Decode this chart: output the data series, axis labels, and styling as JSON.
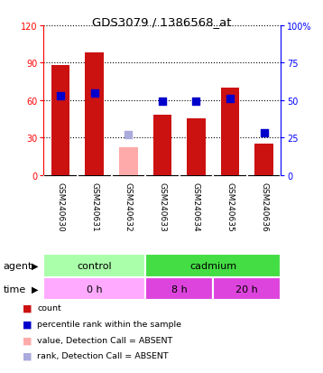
{
  "title": "GDS3079 / 1386568_at",
  "samples": [
    "GSM240630",
    "GSM240631",
    "GSM240632",
    "GSM240633",
    "GSM240634",
    "GSM240635",
    "GSM240636"
  ],
  "count_values": [
    88,
    98,
    null,
    48,
    45,
    70,
    25
  ],
  "count_absent_values": [
    null,
    null,
    22,
    null,
    null,
    null,
    null
  ],
  "percentile_values": [
    53,
    55,
    null,
    49,
    49,
    51,
    28
  ],
  "percentile_absent_values": [
    null,
    null,
    27,
    null,
    null,
    null,
    null
  ],
  "bar_color_present": "#cc1111",
  "bar_color_absent": "#ffaaaa",
  "dot_color_present": "#0000cc",
  "dot_color_absent": "#aaaadd",
  "agent_groups": [
    {
      "label": "control",
      "start": 0,
      "end": 3,
      "color": "#aaffaa"
    },
    {
      "label": "cadmium",
      "start": 3,
      "end": 7,
      "color": "#44dd44"
    }
  ],
  "time_groups": [
    {
      "label": "0 h",
      "start": 0,
      "end": 3,
      "color": "#ffaaff"
    },
    {
      "label": "8 h",
      "start": 3,
      "end": 5,
      "color": "#dd44dd"
    },
    {
      "label": "20 h",
      "start": 5,
      "end": 7,
      "color": "#dd44dd"
    }
  ],
  "ylim_left": [
    0,
    120
  ],
  "ylim_right": [
    0,
    100
  ],
  "yticks_left": [
    0,
    30,
    60,
    90,
    120
  ],
  "yticks_right": [
    0,
    25,
    50,
    75,
    100
  ],
  "ytick_labels_left": [
    "0",
    "30",
    "60",
    "90",
    "120"
  ],
  "ytick_labels_right": [
    "0",
    "25",
    "50",
    "75",
    "100%"
  ],
  "bar_width": 0.55,
  "dot_size": 30,
  "background_color": "#ffffff",
  "plot_bg_color": "#ffffff",
  "legend_items": [
    {
      "label": "count",
      "color": "#cc1111"
    },
    {
      "label": "percentile rank within the sample",
      "color": "#0000cc"
    },
    {
      "label": "value, Detection Call = ABSENT",
      "color": "#ffaaaa"
    },
    {
      "label": "rank, Detection Call = ABSENT",
      "color": "#aaaadd"
    }
  ]
}
